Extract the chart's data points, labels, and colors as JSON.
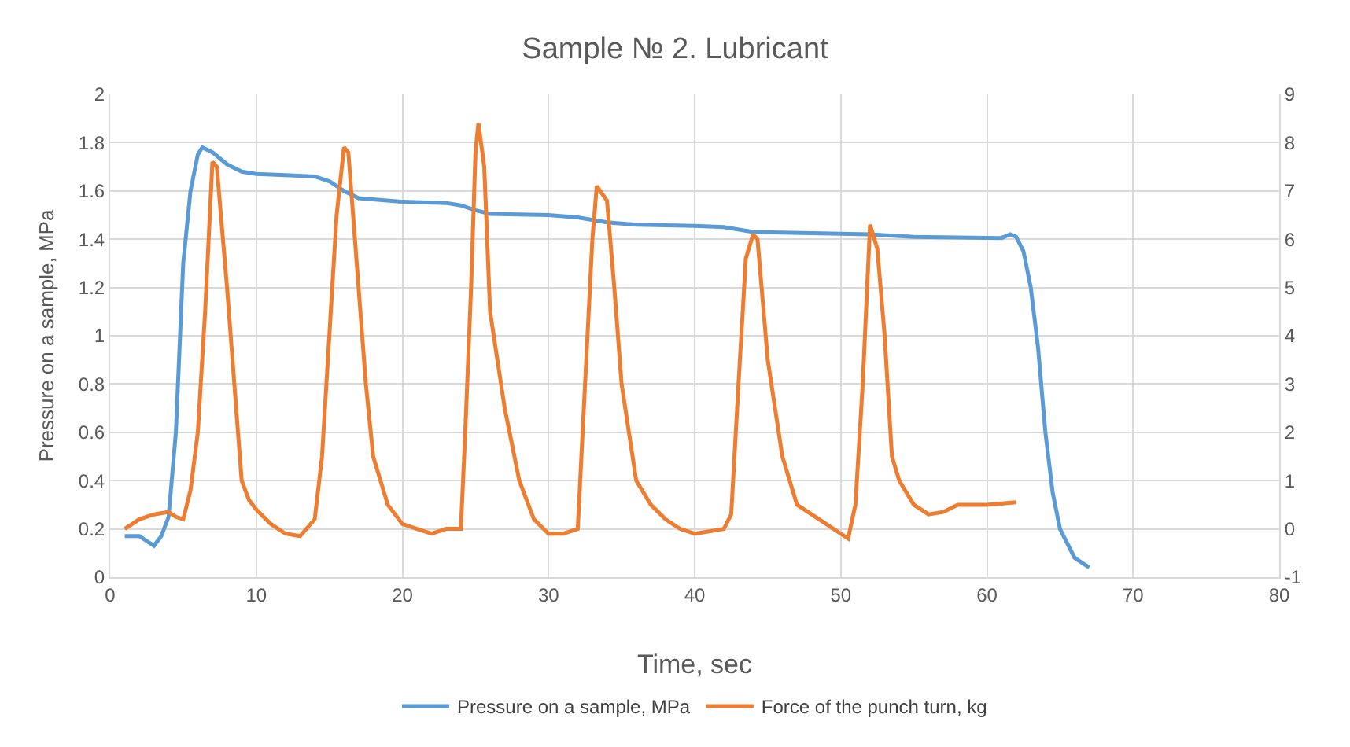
{
  "chart_data": {
    "type": "line",
    "title": "Sample № 2. Lubricant",
    "xlabel": "Time, sec",
    "ylabel": "Pressure on a sample, MPa",
    "xlim": [
      0,
      80
    ],
    "xticks": [
      0,
      10,
      20,
      30,
      40,
      50,
      60,
      70,
      80
    ],
    "ylim": [
      0,
      2
    ],
    "yticks": [
      0,
      0.2,
      0.4,
      0.6,
      0.8,
      1,
      1.2,
      1.4,
      1.6,
      1.8,
      2
    ],
    "y2lim": [
      -1,
      9
    ],
    "y2ticks": [
      -1,
      0,
      1,
      2,
      3,
      4,
      5,
      6,
      7,
      8,
      9
    ],
    "grid": true,
    "legend": "bottom",
    "line_style": "solid",
    "series": [
      {
        "name": "Pressure on a sample, MPa",
        "color": "#5b9bd5",
        "x": [
          1,
          2,
          2.5,
          3,
          3.5,
          4,
          4.5,
          5,
          5.5,
          6,
          6.3,
          7,
          8,
          9,
          10,
          12,
          14,
          15,
          16,
          17,
          20,
          23,
          24,
          25,
          26,
          30,
          32,
          34,
          36,
          40,
          42,
          44,
          48,
          52,
          55,
          61,
          61.6,
          62,
          62.5,
          63,
          63.5,
          64,
          64.5,
          65,
          66,
          67
        ],
        "values": [
          0.17,
          0.17,
          0.15,
          0.13,
          0.17,
          0.25,
          0.6,
          1.3,
          1.6,
          1.75,
          1.78,
          1.76,
          1.71,
          1.68,
          1.67,
          1.665,
          1.66,
          1.64,
          1.6,
          1.57,
          1.555,
          1.55,
          1.54,
          1.52,
          1.505,
          1.5,
          1.49,
          1.47,
          1.46,
          1.455,
          1.45,
          1.43,
          1.425,
          1.42,
          1.41,
          1.405,
          1.42,
          1.41,
          1.35,
          1.2,
          0.95,
          0.6,
          0.35,
          0.2,
          0.08,
          0.04
        ]
      },
      {
        "name": "Force of the punch turn, kg",
        "color": "#ed7d31",
        "axis": "y2",
        "x": [
          1,
          2,
          3,
          4,
          4.5,
          5,
          5.5,
          6,
          6.5,
          7,
          7.3,
          8,
          8.5,
          9,
          9.5,
          10,
          11,
          12,
          13,
          14,
          14.5,
          15,
          15.5,
          16,
          16.3,
          17,
          17.5,
          18,
          19,
          20,
          21,
          22,
          23,
          24,
          24.3,
          24.7,
          25,
          25.2,
          25.6,
          26,
          27,
          28,
          29,
          30,
          31,
          32,
          32.5,
          33,
          33.3,
          34,
          34.5,
          35,
          36,
          37,
          38,
          39,
          40,
          41,
          42,
          42.5,
          43,
          43.5,
          44,
          44.3,
          45,
          46,
          47,
          48,
          49,
          50,
          50.5,
          51,
          51.5,
          52,
          52.5,
          53,
          53.5,
          54,
          55,
          56,
          57,
          58,
          60,
          62
        ],
        "values": [
          0,
          0.2,
          0.3,
          0.35,
          0.25,
          0.2,
          0.8,
          2,
          4.5,
          7.6,
          7.5,
          5,
          3,
          1,
          0.6,
          0.4,
          0.1,
          -0.1,
          -0.15,
          0.2,
          1.5,
          4,
          6.5,
          7.9,
          7.8,
          5,
          3,
          1.5,
          0.5,
          0.1,
          0,
          -0.1,
          0,
          0,
          2,
          5,
          7.8,
          8.4,
          7.5,
          4.5,
          2.5,
          1,
          0.2,
          -0.1,
          -0.1,
          0,
          3,
          6,
          7.1,
          6.8,
          5,
          3,
          1,
          0.5,
          0.2,
          0,
          -0.1,
          -0.05,
          0,
          0.3,
          3,
          5.6,
          6.1,
          6,
          3.5,
          1.5,
          0.5,
          0.3,
          0.1,
          -0.1,
          -0.2,
          0.5,
          3,
          6.3,
          5.8,
          4,
          1.5,
          1,
          0.5,
          0.3,
          0.35,
          0.5,
          0.5,
          0.55
        ]
      }
    ]
  }
}
